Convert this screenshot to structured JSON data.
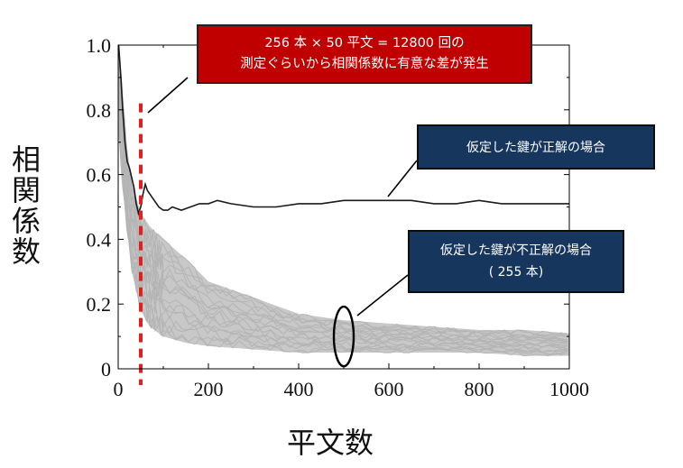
{
  "chart_data": {
    "type": "line",
    "xlabel": "平文数",
    "ylabel": "相関係数",
    "xlim": [
      0,
      1000
    ],
    "ylim": [
      0,
      1.0
    ],
    "x_ticks": [
      "0",
      "200",
      "400",
      "600",
      "800",
      "1000"
    ],
    "y_ticks": [
      "0",
      "0.2",
      "0.4",
      "0.6",
      "0.8",
      "1.0"
    ],
    "threshold_x": 50,
    "series": [
      {
        "name": "仮定した鍵が正解の場合",
        "color": "#1a1a1a",
        "points": [
          [
            1,
            1.0
          ],
          [
            3,
            0.96
          ],
          [
            6,
            0.9
          ],
          [
            10,
            0.8
          ],
          [
            15,
            0.7
          ],
          [
            20,
            0.64
          ],
          [
            25,
            0.62
          ],
          [
            30,
            0.59
          ],
          [
            35,
            0.56
          ],
          [
            40,
            0.51
          ],
          [
            45,
            0.48
          ],
          [
            50,
            0.5
          ],
          [
            55,
            0.54
          ],
          [
            60,
            0.57
          ],
          [
            65,
            0.55
          ],
          [
            70,
            0.54
          ],
          [
            80,
            0.52
          ],
          [
            90,
            0.5
          ],
          [
            100,
            0.49
          ],
          [
            110,
            0.49
          ],
          [
            120,
            0.5
          ],
          [
            140,
            0.49
          ],
          [
            160,
            0.5
          ],
          [
            180,
            0.51
          ],
          [
            200,
            0.51
          ],
          [
            220,
            0.52
          ],
          [
            250,
            0.51
          ],
          [
            300,
            0.5
          ],
          [
            350,
            0.5
          ],
          [
            400,
            0.51
          ],
          [
            450,
            0.51
          ],
          [
            500,
            0.52
          ],
          [
            550,
            0.52
          ],
          [
            600,
            0.52
          ],
          [
            650,
            0.52
          ],
          [
            700,
            0.51
          ],
          [
            750,
            0.51
          ],
          [
            800,
            0.52
          ],
          [
            850,
            0.51
          ],
          [
            900,
            0.51
          ],
          [
            950,
            0.51
          ],
          [
            1000,
            0.51
          ]
        ]
      },
      {
        "name": "仮定した鍵が不正解の場合 ( 255 本)",
        "color": "#c8c8c8",
        "band_upper": [
          [
            1,
            1.0
          ],
          [
            10,
            0.86
          ],
          [
            20,
            0.68
          ],
          [
            30,
            0.58
          ],
          [
            50,
            0.48
          ],
          [
            70,
            0.44
          ],
          [
            100,
            0.4
          ],
          [
            150,
            0.34
          ],
          [
            200,
            0.27
          ],
          [
            300,
            0.22
          ],
          [
            400,
            0.17
          ],
          [
            500,
            0.15
          ],
          [
            600,
            0.14
          ],
          [
            700,
            0.13
          ],
          [
            800,
            0.12
          ],
          [
            900,
            0.12
          ],
          [
            1000,
            0.11
          ]
        ],
        "band_lower": [
          [
            1,
            0.72
          ],
          [
            10,
            0.56
          ],
          [
            20,
            0.42
          ],
          [
            30,
            0.3
          ],
          [
            50,
            0.18
          ],
          [
            70,
            0.13
          ],
          [
            100,
            0.1
          ],
          [
            150,
            0.08
          ],
          [
            200,
            0.07
          ],
          [
            300,
            0.06
          ],
          [
            400,
            0.05
          ],
          [
            500,
            0.05
          ],
          [
            600,
            0.05
          ],
          [
            700,
            0.05
          ],
          [
            800,
            0.05
          ],
          [
            900,
            0.04
          ],
          [
            1000,
            0.04
          ]
        ]
      }
    ],
    "annotations": {
      "threshold_line1": "256 本 × 50 平文 = 12800 回の",
      "threshold_line2": "測定ぐらいから相関係数に有意な差が発生",
      "correct_label": "仮定した鍵が正解の場合",
      "wrong_line1": "仮定した鍵が不正解の場合",
      "wrong_line2": "( 255 本)"
    },
    "colors": {
      "threshold": "#e02020",
      "red_box": "#c00000",
      "navy_box": "#17365d"
    }
  }
}
